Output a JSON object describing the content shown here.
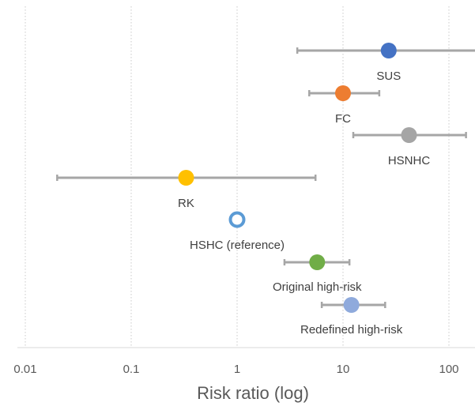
{
  "chart_data": {
    "type": "scatter",
    "title": "",
    "xlabel": "Risk ratio (log)",
    "ylabel": "",
    "x_scale": "log",
    "xlim": [
      0.01,
      180
    ],
    "x_ticks": [
      "0.01",
      "0.1",
      "1",
      "10",
      "100"
    ],
    "x_tick_values": [
      0.01,
      0.1,
      1,
      10,
      100
    ],
    "grid": "vertical dotted",
    "error_bar_color": "#a6a6a6",
    "points": [
      {
        "label": "SUS",
        "x": 27,
        "low": 3.7,
        "high": 180,
        "color": "#4472c4",
        "hollow": false
      },
      {
        "label": "FC",
        "x": 10,
        "low": 4.8,
        "high": 22,
        "color": "#ed7d31",
        "hollow": false
      },
      {
        "label": "HSNHC",
        "x": 42,
        "low": 12.5,
        "high": 145,
        "color": "#a5a5a5",
        "hollow": false
      },
      {
        "label": "RK",
        "x": 0.33,
        "low": 0.02,
        "high": 5.5,
        "color": "#ffc000",
        "hollow": false
      },
      {
        "label": "HSHC (reference)",
        "x": 1,
        "low": null,
        "high": null,
        "color": "#5b9bd5",
        "hollow": true
      },
      {
        "label": "Original high-risk",
        "x": 5.7,
        "low": 2.8,
        "high": 11.5,
        "color": "#70ad47",
        "hollow": false
      },
      {
        "label": "Redefined high-risk",
        "x": 12,
        "low": 6.3,
        "high": 25,
        "color": "#8faadc",
        "hollow": false
      }
    ]
  }
}
